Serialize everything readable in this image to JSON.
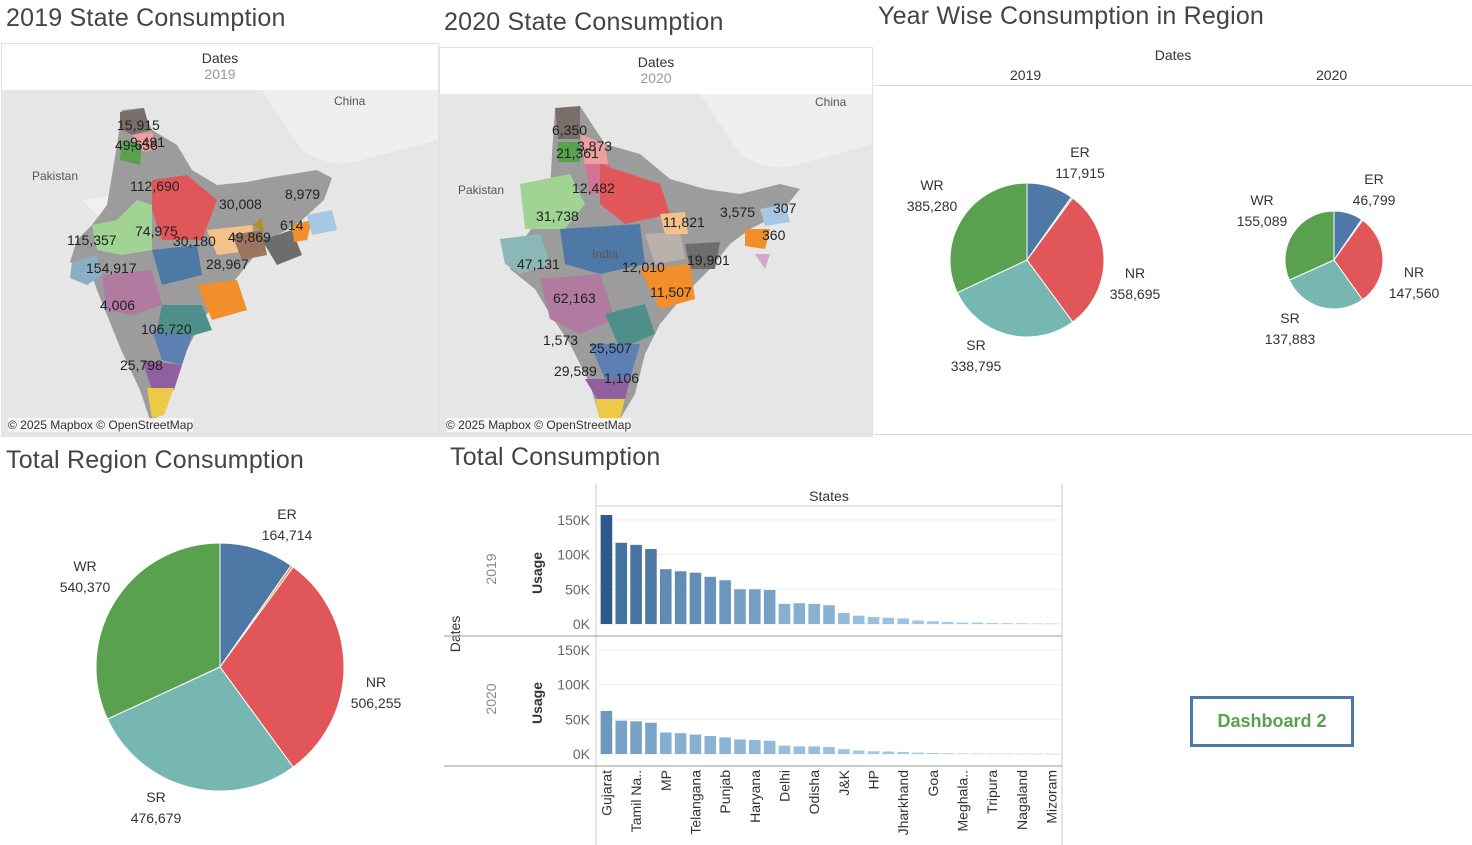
{
  "titles": {
    "map2019": "2019 State Consumption",
    "map2020": "2020 State Consumption",
    "yearwise": "Year Wise Consumption in Region",
    "totalregion": "Total Region Consumption",
    "totalcons": "Total Consumption"
  },
  "maps": {
    "header": "Dates",
    "year2019": "2019",
    "year2020": "2020",
    "attribution": "© 2025 Mapbox © OpenStreetMap",
    "geo_labels": {
      "china": "China",
      "pakistan": "Pakistan",
      "india": "India"
    },
    "labels2019": [
      "15,915",
      "9,491",
      "49,656",
      "112,690",
      "30,008",
      "8,979",
      "614",
      "115,357",
      "74,975",
      "30,180",
      "49,869",
      "154,917",
      "28,967",
      "4,006",
      "106,720",
      "25,798"
    ],
    "labels2020": [
      "6,350",
      "3,873",
      "21,361",
      "12,482",
      "31,738",
      "11,821",
      "3,575",
      "307",
      "360",
      "47,131",
      "12,010",
      "19,901",
      "11,507",
      "62,163",
      "1,573",
      "25,507",
      "29,589",
      "1,106"
    ]
  },
  "yearwise": {
    "header": "Dates",
    "col2019": "2019",
    "col2020": "2020"
  },
  "dashboard_button": "Dashboard 2",
  "chart_data": [
    {
      "type": "pie",
      "title": "Year Wise Consumption in Region",
      "facet": "2019",
      "series": [
        {
          "name": "ER",
          "value": 117915,
          "label": "117,915",
          "color": "#4e79a7"
        },
        {
          "name": "NE",
          "value": 3940,
          "label": "",
          "color": "#f28e2b"
        },
        {
          "name": "NR",
          "value": 358695,
          "label": "358,695",
          "color": "#e15759"
        },
        {
          "name": "SR",
          "value": 338795,
          "label": "338,795",
          "color": "#76b7b2"
        },
        {
          "name": "WR",
          "value": 385280,
          "label": "385,280",
          "color": "#59a14f"
        }
      ]
    },
    {
      "type": "pie",
      "title": "Year Wise Consumption in Region",
      "facet": "2020",
      "series": [
        {
          "name": "ER",
          "value": 46799,
          "label": "46,799",
          "color": "#4e79a7"
        },
        {
          "name": "NE",
          "value": 1800,
          "label": "",
          "color": "#f28e2b"
        },
        {
          "name": "NR",
          "value": 147560,
          "label": "147,560",
          "color": "#e15759"
        },
        {
          "name": "SR",
          "value": 137883,
          "label": "137,883",
          "color": "#76b7b2"
        },
        {
          "name": "WR",
          "value": 155089,
          "label": "155,089",
          "color": "#59a14f"
        }
      ]
    },
    {
      "type": "pie",
      "title": "Total Region Consumption",
      "series": [
        {
          "name": "ER",
          "value": 164714,
          "label": "164,714",
          "color": "#4e79a7"
        },
        {
          "name": "NE",
          "value": 5740,
          "label": "",
          "color": "#f28e2b"
        },
        {
          "name": "NR",
          "value": 506255,
          "label": "506,255",
          "color": "#e15759"
        },
        {
          "name": "SR",
          "value": 476679,
          "label": "476,679",
          "color": "#76b7b2"
        },
        {
          "name": "WR",
          "value": 540370,
          "label": "540,370",
          "color": "#59a14f"
        }
      ]
    },
    {
      "type": "bar",
      "title": "Total Consumption",
      "column_header": "States",
      "row_header": "Dates",
      "ylabel": "Usage",
      "yticks": [
        "150K",
        "100K",
        "50K",
        "0K"
      ],
      "ylim": [
        0,
        170000
      ],
      "categories": [
        "Gujarat",
        "",
        "Tamil Na..",
        "",
        "MP",
        "",
        "Telangana",
        "",
        "Punjab",
        "",
        "Haryana",
        "",
        "Delhi",
        "",
        "Odisha",
        "",
        "J&K",
        "",
        "HP",
        "",
        "Jharkhand",
        "",
        "Goa",
        "",
        "Meghala..",
        "",
        "Tripura",
        "",
        "Nagaland",
        "",
        "Mizoram"
      ],
      "series": [
        {
          "name": "2019",
          "values": [
            157000,
            117000,
            114000,
            108000,
            79000,
            76000,
            74000,
            68000,
            63000,
            50000,
            50000,
            49000,
            29000,
            30000,
            29000,
            27000,
            16000,
            12000,
            10000,
            9000,
            8000,
            5000,
            4000,
            3000,
            2000,
            2000,
            1500,
            1200,
            1000,
            800,
            600
          ]
        },
        {
          "name": "2020",
          "values": [
            62000,
            48000,
            47000,
            45000,
            31000,
            30000,
            28000,
            26000,
            24000,
            21000,
            20000,
            19000,
            12000,
            11000,
            11000,
            10000,
            7000,
            5000,
            4000,
            3500,
            3000,
            2000,
            1500,
            1200,
            800,
            700,
            500,
            400,
            300,
            250,
            200
          ]
        }
      ]
    }
  ]
}
